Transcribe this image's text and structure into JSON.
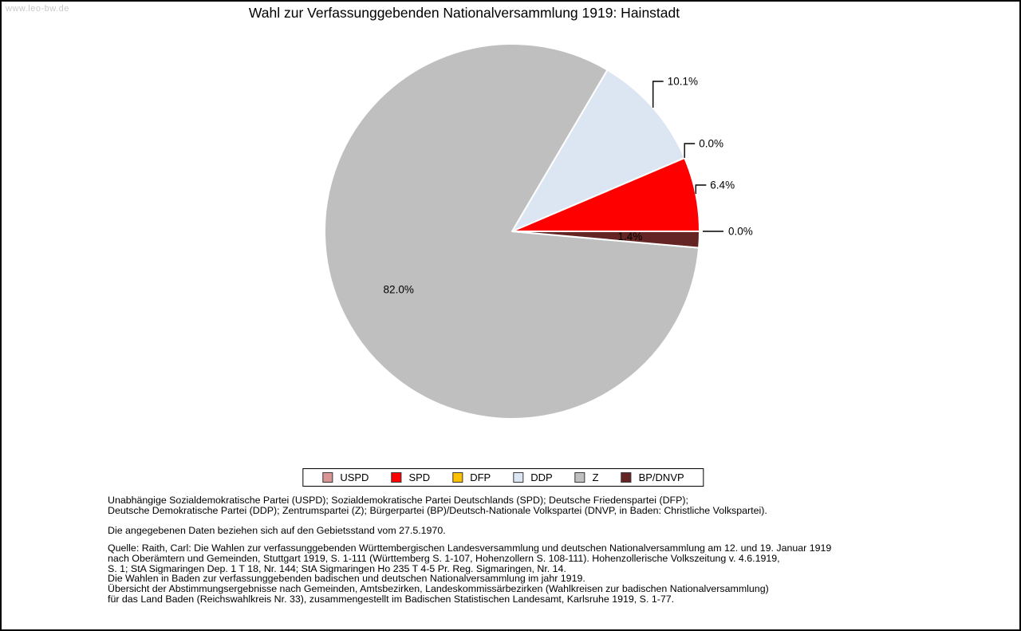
{
  "watermark": "www.leo-bw.de",
  "title": "Wahl zur Verfassunggebenden Nationalversammlung 1919: Hainstadt",
  "chart_data": {
    "type": "pie",
    "title": "Wahl zur Verfassunggebenden Nationalversammlung 1919: Hainstadt",
    "categories": [
      "USPD",
      "SPD",
      "DFP",
      "DDP",
      "Z",
      "BP/DNVP"
    ],
    "values": [
      0.0,
      6.4,
      0.0,
      10.1,
      82.0,
      1.4
    ],
    "value_labels": [
      "0.0%",
      "6.4%",
      "0.0%",
      "10.1%",
      "82.0%",
      "1.4%"
    ],
    "colors": [
      "#d99694",
      "#ff0000",
      "#ffc000",
      "#dce6f2",
      "#bfbfbf",
      "#632423"
    ],
    "unit": "%",
    "direction": "counterclockwise",
    "start_angle_deg": 0,
    "legend_position": "bottom",
    "label_placement": [
      "outside-right",
      "outside-elbow",
      "outside-elbow",
      "outside-elbow",
      "inside",
      "inside"
    ]
  },
  "footnotes": {
    "party_lines": [
      "Unabhängige Sozialdemokratische Partei (USPD); Sozialdemokratische Partei Deutschlands (SPD); Deutsche Friedenspartei (DFP);",
      "Deutsche Demokratische Partei (DDP); Zentrumspartei (Z); Bürgerpartei (BP)/Deutsch-Nationale Volkspartei (DNVP, in Baden: Christliche Volkspartei)."
    ],
    "data_note": "Die angegebenen Daten beziehen sich auf den Gebietsstand vom 27.5.1970.",
    "source_lines": [
      "Quelle: Raith, Carl: Die Wahlen zur verfassunggebenden Württembergischen Landesversammlung und deutschen Nationalversammlung am 12. und 19. Januar 1919",
      "nach Oberämtern und Gemeinden, Stuttgart 1919, S. 1-111 (Württemberg S. 1-107, Hohenzollern S. 108-111). Hohenzollerische Volkszeitung v. 4.6.1919,",
      "S. 1; StA Sigmaringen Dep. 1 T 18, Nr. 144; StA Sigmaringen Ho 235 T 4-5 Pr. Reg. Sigmaringen, Nr. 14.",
      "Die Wahlen in Baden zur verfassunggebenden badischen und deutschen Nationalversammlung im jahr 1919.",
      "Übersicht der Abstimmungsergebnisse nach Gemeinden, Amtsbezirken, Landeskommissärbezirken (Wahlkreisen zur badischen Nationalversammlung)",
      "für das Land Baden (Reichswahlkreis Nr. 33), zusammengestellt im Badischen Statistischen Landesamt, Karlsruhe 1919, S. 1-77."
    ]
  }
}
